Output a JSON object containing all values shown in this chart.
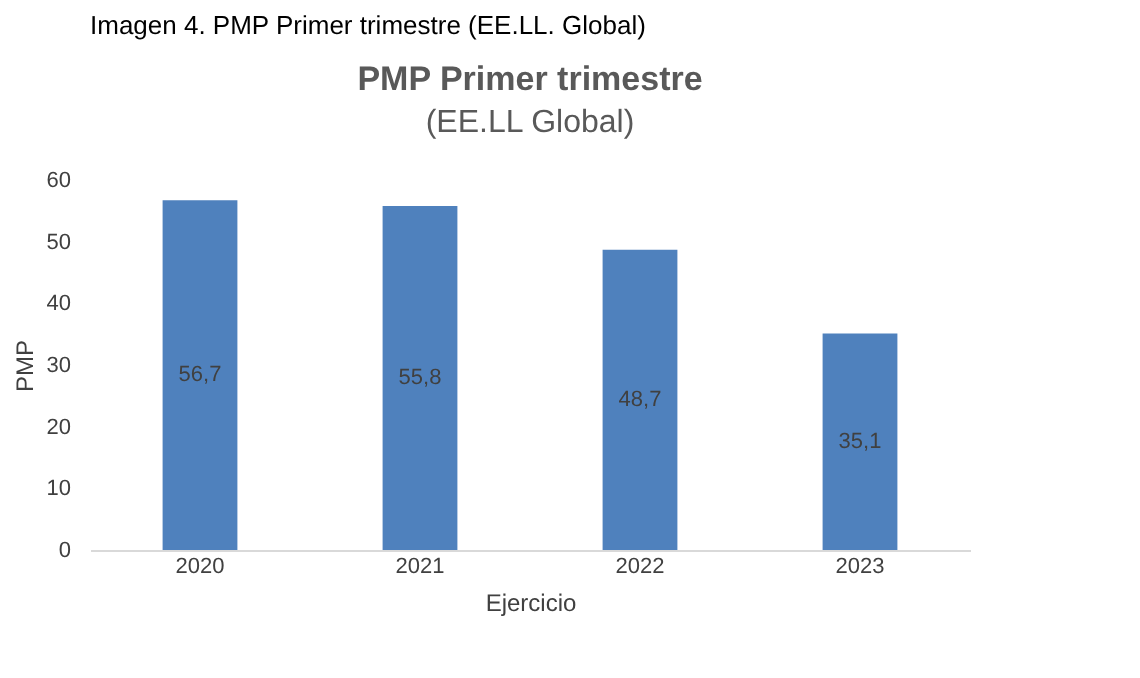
{
  "chart_data": {
    "type": "bar",
    "title": "PMP Primer trimestre",
    "subtitle": "(EE.LL Global)",
    "annotations": [
      "Imagen 4. PMP Primer trimestre (EE.LL. Global)"
    ],
    "xlabel": "Ejercicio",
    "ylabel": "PMP",
    "categories": [
      "2020",
      "2021",
      "2022",
      "2023"
    ],
    "values": [
      56.7,
      55.8,
      48.7,
      35.1
    ],
    "value_labels": [
      "56,7",
      "55,8",
      "48,7",
      "35,1"
    ],
    "color": "#4f81bd",
    "ylim": [
      0,
      60
    ],
    "yticks": [
      0,
      10,
      20,
      30,
      40,
      50,
      60
    ],
    "grid": false
  }
}
